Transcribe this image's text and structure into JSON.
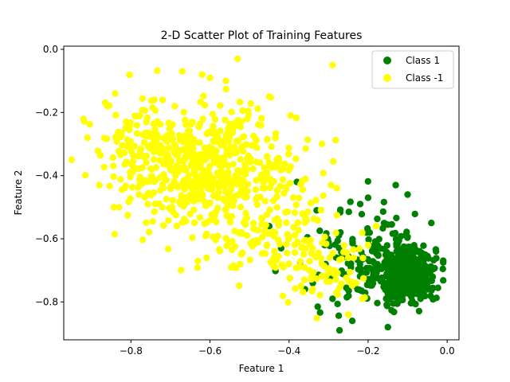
{
  "chart_data": {
    "type": "scatter",
    "title": "2-D Scatter Plot of Training Features",
    "xlabel": "Feature 1",
    "ylabel": "Feature 2",
    "xlim": [
      -0.97,
      0.03
    ],
    "ylim": [
      -0.92,
      0.01
    ],
    "xticks": [
      -0.8,
      -0.6,
      -0.4,
      -0.2,
      0.0
    ],
    "xtick_labels": [
      "−0.8",
      "−0.6",
      "−0.4",
      "−0.2",
      "0.0"
    ],
    "yticks": [
      0.0,
      -0.2,
      -0.4,
      -0.6,
      -0.8
    ],
    "ytick_labels": [
      "0.0",
      "−0.2",
      "−0.4",
      "−0.6",
      "−0.8"
    ],
    "grid": false,
    "legend": {
      "position": "top-right"
    },
    "series": [
      {
        "name": "Class 1",
        "color": "#008000",
        "clusters": [
          {
            "center": [
              -0.1,
              -0.71
            ],
            "spread": [
              0.035,
              0.045
            ],
            "count": 420
          },
          {
            "center": [
              -0.16,
              -0.66
            ],
            "spread": [
              0.06,
              0.08
            ],
            "count": 110
          },
          {
            "center": [
              -0.26,
              -0.7
            ],
            "spread": [
              0.06,
              0.07
            ],
            "count": 45
          }
        ],
        "points": [
          [
            -0.13,
            -0.43
          ],
          [
            -0.45,
            -0.56
          ],
          [
            -0.38,
            -0.42
          ],
          [
            -0.33,
            -0.51
          ],
          [
            -0.22,
            -0.49
          ],
          [
            -0.2,
            -0.47
          ],
          [
            -0.1,
            -0.46
          ],
          [
            -0.24,
            -0.86
          ],
          [
            -0.15,
            -0.88
          ],
          [
            -0.04,
            -0.55
          ],
          [
            -0.34,
            -0.74
          ],
          [
            -0.36,
            -0.76
          ],
          [
            -0.29,
            -0.79
          ],
          [
            -0.31,
            -0.62
          ],
          [
            -0.27,
            -0.58
          ],
          [
            -0.42,
            -0.63
          ]
        ]
      },
      {
        "name": "Class -1",
        "color": "#ffff00",
        "clusters": [
          {
            "center": [
              -0.6,
              -0.38
            ],
            "spread": [
              0.11,
              0.09
            ],
            "count": 560
          },
          {
            "center": [
              -0.45,
              -0.58
            ],
            "spread": [
              0.09,
              0.07
            ],
            "count": 130
          },
          {
            "center": [
              -0.3,
              -0.7
            ],
            "spread": [
              0.06,
              0.05
            ],
            "count": 60
          },
          {
            "center": [
              -0.78,
              -0.3
            ],
            "spread": [
              0.07,
              0.07
            ],
            "count": 80
          }
        ],
        "points": [
          [
            -0.53,
            -0.03
          ],
          [
            -0.29,
            -0.05
          ],
          [
            -0.95,
            -0.35
          ],
          [
            -0.92,
            -0.22
          ],
          [
            -0.84,
            -0.14
          ],
          [
            -0.62,
            -0.08
          ],
          [
            -0.67,
            -0.07
          ],
          [
            -0.6,
            -0.09
          ],
          [
            -0.56,
            -0.1
          ],
          [
            -0.45,
            -0.15
          ],
          [
            -0.72,
            -0.16
          ],
          [
            -0.88,
            -0.43
          ],
          [
            -0.83,
            -0.5
          ],
          [
            -0.91,
            -0.28
          ],
          [
            -0.86,
            -0.18
          ],
          [
            -0.4,
            -0.68
          ],
          [
            -0.37,
            -0.75
          ],
          [
            -0.25,
            -0.84
          ],
          [
            -0.34,
            -0.76
          ],
          [
            -0.2,
            -0.62
          ],
          [
            -0.18,
            -0.56
          ],
          [
            -0.28,
            -0.77
          ],
          [
            -0.23,
            -0.74
          ]
        ]
      }
    ]
  }
}
